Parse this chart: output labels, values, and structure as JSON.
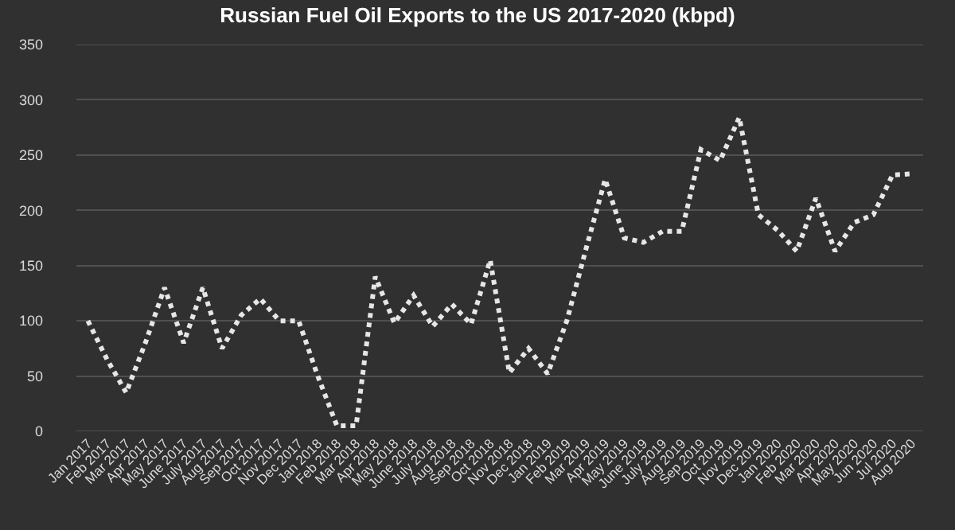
{
  "chart_data": {
    "type": "line",
    "title": "Russian Fuel Oil Exports to the US 2017-2020 (kbpd)",
    "categories": [
      "Jan 2017",
      "Feb 2017",
      "Mar 2017",
      "Apr 2017",
      "May 2017",
      "June 2017",
      "July 2017",
      "Aug 2017",
      "Sep 2017",
      "Oct 2017",
      "Nov 2017",
      "Dec 2017",
      "Jan 2018",
      "Feb 2018",
      "Mar 2018",
      "Apr 2018",
      "May 2018",
      "June 2018",
      "July 2018",
      "Aug 2018",
      "Sep 2018",
      "Oct 2018",
      "Nov 2018",
      "Dec 2018",
      "Jan 2019",
      "Feb 2019",
      "Mar 2019",
      "Apr 2019",
      "May 2019",
      "June 2019",
      "July 2019",
      "Aug 2019",
      "Sep 2019",
      "Oct 2019",
      "Nov 2019",
      "Dec 2019",
      "Jan 2020",
      "Feb 2020",
      "Mar 2020",
      "Apr 2020",
      "May 2020",
      "Jun 2020",
      "Jul 2020",
      "Aug 2020"
    ],
    "series": [
      {
        "color": "#e6e6e6",
        "values": [
          100,
          65,
          35,
          80,
          130,
          80,
          130,
          75,
          105,
          120,
          100,
          100,
          50,
          5,
          5,
          140,
          98,
          123,
          95,
          115,
          97,
          155,
          53,
          75,
          52,
          100,
          165,
          228,
          175,
          171,
          181,
          181,
          255,
          245,
          284,
          196,
          182,
          163,
          211,
          163,
          189,
          196,
          232,
          233
        ]
      }
    ],
    "ylim": [
      0,
      350
    ],
    "yticks": [
      0,
      50,
      100,
      150,
      200,
      250,
      300,
      350
    ],
    "grid": "y",
    "marker": "none",
    "line_style": "dotted"
  }
}
